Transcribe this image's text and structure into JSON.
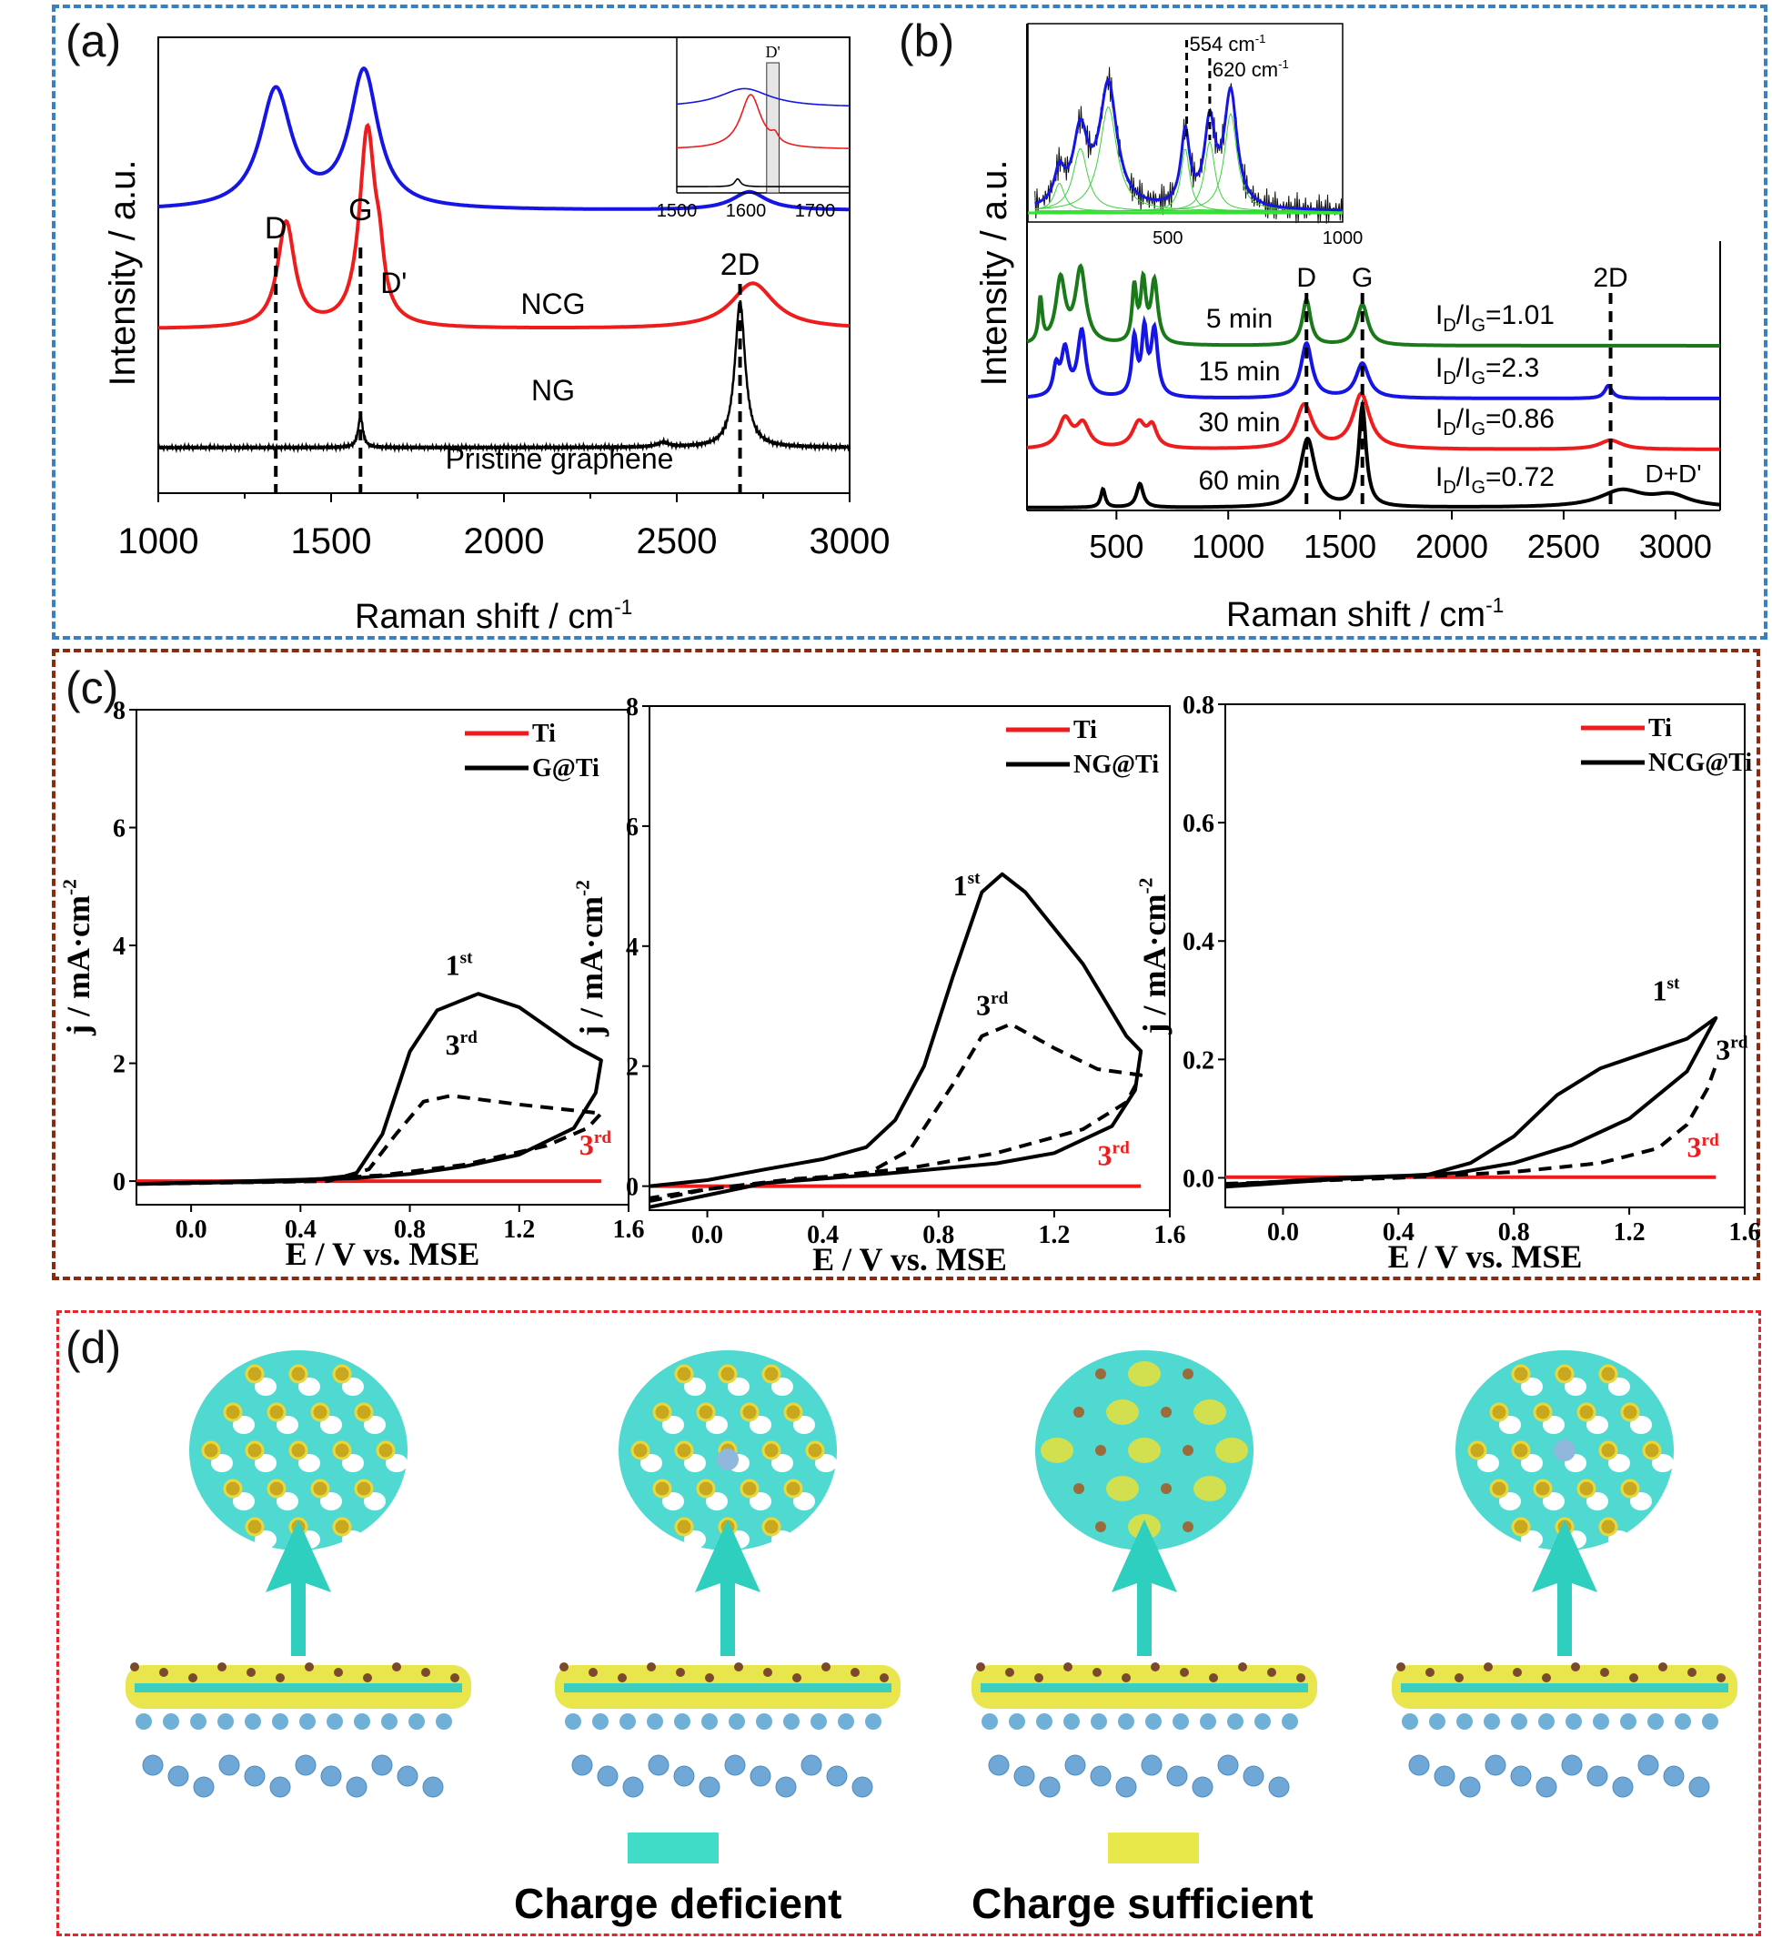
{
  "panels": {
    "a": {
      "label": "(a)"
    },
    "b": {
      "label": "(b)"
    },
    "c": {
      "label": "(c)"
    },
    "d": {
      "label": "(d)"
    }
  },
  "chart_data": [
    {
      "id": "a",
      "type": "line",
      "title": "",
      "xlabel": "Raman shift / cm-1",
      "ylabel": "Intensity / a.u.",
      "xlim": [
        1000,
        3000
      ],
      "xticks": [
        1000,
        1500,
        2000,
        2500,
        3000
      ],
      "grid": false,
      "series": [
        {
          "name": "NCG",
          "color": "#1515e6",
          "offset": 0.62,
          "peaks": [
            {
              "x": 1340,
              "h": 0.26,
              "w": 55
            },
            {
              "x": 1595,
              "h": 0.3,
              "w": 50
            },
            {
              "x": 2710,
              "h": 0.04,
              "w": 60
            }
          ]
        },
        {
          "name": "NG",
          "color": "#ee1c1c",
          "offset": 0.36,
          "peaks": [
            {
              "x": 1370,
              "h": 0.23,
              "w": 30
            },
            {
              "x": 1605,
              "h": 0.43,
              "w": 28
            },
            {
              "x": 1640,
              "h": 0.08,
              "w": 15
            },
            {
              "x": 2720,
              "h": 0.1,
              "w": 75
            }
          ]
        },
        {
          "name": "Pristine graphene",
          "color": "#000000",
          "offset": 0.1,
          "peaks": [
            {
              "x": 1585,
              "h": 0.07,
              "w": 8
            },
            {
              "x": 2683,
              "h": 0.32,
              "w": 18
            },
            {
              "x": 2460,
              "h": 0.01,
              "w": 20
            }
          ]
        }
      ],
      "annotations": [
        {
          "text": "D",
          "x": 1340
        },
        {
          "text": "G",
          "x": 1585
        },
        {
          "text": "D'",
          "x": 1660
        },
        {
          "text": "2D",
          "x": 2683
        }
      ],
      "series_labels": [
        "NCG",
        "NG",
        "Pristine graphene"
      ],
      "inset": {
        "xlim": [
          1500,
          1750
        ],
        "xticks": [
          1500,
          1600,
          1700
        ],
        "band_label": "D'",
        "band": [
          1630,
          1648
        ]
      }
    },
    {
      "id": "b",
      "type": "line",
      "title": "",
      "xlabel": "Raman shift / cm-1",
      "ylabel": "Intensity / a.u.",
      "xlim": [
        100,
        3200
      ],
      "xticks": [
        500,
        1000,
        1500,
        2000,
        2500,
        3000
      ],
      "grid": false,
      "series": [
        {
          "name": "5 min",
          "ratio": "ID/IG=1.01",
          "color": "#1a7a1a"
        },
        {
          "name": "15 min",
          "ratio": "ID/IG=2.3",
          "color": "#1515e6"
        },
        {
          "name": "30 min",
          "ratio": "ID/IG=0.86",
          "color": "#ee1c1c"
        },
        {
          "name": "60 min",
          "ratio": "ID/IG=0.72",
          "color": "#000000"
        }
      ],
      "annotations": [
        {
          "text": "D",
          "x": 1350
        },
        {
          "text": "G",
          "x": 1600
        },
        {
          "text": "2D",
          "x": 2710
        },
        {
          "text": "D+D'",
          "x": 2950
        }
      ],
      "inset": {
        "xlim": [
          100,
          1000
        ],
        "xticks": [
          500,
          1000
        ],
        "markers": [
          {
            "text": "554 cm-1",
            "x": 554
          },
          {
            "text": "620 cm-1",
            "x": 620
          }
        ]
      }
    },
    {
      "id": "c1",
      "type": "line",
      "xlabel": "E / V vs. MSE",
      "ylabel": "j / mA·cm-2",
      "xlim": [
        -0.2,
        1.6
      ],
      "ylim": [
        -0.4,
        8
      ],
      "xticks": [
        0.0,
        0.4,
        0.8,
        1.2,
        1.6
      ],
      "yticks": [
        0,
        2,
        4,
        6,
        8
      ],
      "legend": [
        "Ti",
        "G@Ti"
      ],
      "legend_position": "top-right",
      "labels": {
        "first": "1st",
        "third": "3rd",
        "ti_third": "3rd"
      },
      "series": [
        {
          "name": "Ti",
          "color": "#ee1c1c",
          "style": "solid",
          "points": [
            [
              -0.2,
              0
            ],
            [
              1.5,
              0
            ]
          ]
        },
        {
          "name": "G@Ti 1st",
          "color": "#000",
          "style": "solid",
          "points": [
            [
              -0.2,
              -0.05
            ],
            [
              0.4,
              0.0
            ],
            [
              0.6,
              0.1
            ],
            [
              0.7,
              0.8
            ],
            [
              0.8,
              2.2
            ],
            [
              0.9,
              2.9
            ],
            [
              1.05,
              3.18
            ],
            [
              1.2,
              2.95
            ],
            [
              1.4,
              2.3
            ],
            [
              1.5,
              2.05
            ],
            [
              1.48,
              1.5
            ],
            [
              1.4,
              0.9
            ],
            [
              1.2,
              0.45
            ],
            [
              1.0,
              0.25
            ],
            [
              0.8,
              0.12
            ],
            [
              0.6,
              0.05
            ],
            [
              0.2,
              0.0
            ],
            [
              -0.2,
              -0.05
            ]
          ]
        },
        {
          "name": "G@Ti 3rd",
          "color": "#000",
          "style": "dashed",
          "points": [
            [
              -0.2,
              -0.05
            ],
            [
              0.5,
              0.0
            ],
            [
              0.65,
              0.2
            ],
            [
              0.75,
              0.8
            ],
            [
              0.85,
              1.35
            ],
            [
              0.95,
              1.45
            ],
            [
              1.2,
              1.3
            ],
            [
              1.5,
              1.15
            ],
            [
              1.45,
              0.9
            ],
            [
              1.3,
              0.6
            ],
            [
              1.0,
              0.28
            ],
            [
              0.7,
              0.1
            ],
            [
              0.4,
              0.02
            ],
            [
              -0.2,
              -0.05
            ]
          ]
        }
      ]
    },
    {
      "id": "c2",
      "type": "line",
      "xlabel": "E / V vs. MSE",
      "ylabel": "j / mA·cm-2",
      "xlim": [
        -0.2,
        1.6
      ],
      "ylim": [
        -0.4,
        8
      ],
      "xticks": [
        0.0,
        0.4,
        0.8,
        1.2,
        1.6
      ],
      "yticks": [
        0,
        2,
        4,
        6,
        8
      ],
      "legend": [
        "Ti",
        "NG@Ti"
      ],
      "legend_position": "top-right",
      "labels": {
        "first": "1st",
        "third": "3rd",
        "ti_third": "3rd"
      },
      "series": [
        {
          "name": "Ti",
          "color": "#ee1c1c",
          "style": "solid",
          "points": [
            [
              -0.2,
              0
            ],
            [
              1.5,
              0
            ]
          ]
        },
        {
          "name": "NG@Ti 1st",
          "color": "#000",
          "style": "solid",
          "points": [
            [
              -0.2,
              0.0
            ],
            [
              0.0,
              0.1
            ],
            [
              0.2,
              0.28
            ],
            [
              0.4,
              0.45
            ],
            [
              0.55,
              0.65
            ],
            [
              0.65,
              1.1
            ],
            [
              0.75,
              2.0
            ],
            [
              0.85,
              3.5
            ],
            [
              0.95,
              4.9
            ],
            [
              1.02,
              5.2
            ],
            [
              1.1,
              4.9
            ],
            [
              1.3,
              3.7
            ],
            [
              1.45,
              2.5
            ],
            [
              1.5,
              2.25
            ],
            [
              1.48,
              1.6
            ],
            [
              1.4,
              1.0
            ],
            [
              1.2,
              0.55
            ],
            [
              1.0,
              0.38
            ],
            [
              0.6,
              0.2
            ],
            [
              0.2,
              0.05
            ],
            [
              0.0,
              -0.15
            ],
            [
              -0.2,
              -0.35
            ]
          ]
        },
        {
          "name": "NG@Ti 3rd",
          "color": "#000",
          "style": "dashed",
          "points": [
            [
              -0.2,
              -0.25
            ],
            [
              0.0,
              -0.05
            ],
            [
              0.3,
              0.12
            ],
            [
              0.55,
              0.2
            ],
            [
              0.7,
              0.6
            ],
            [
              0.85,
              1.7
            ],
            [
              0.95,
              2.5
            ],
            [
              1.05,
              2.7
            ],
            [
              1.2,
              2.3
            ],
            [
              1.35,
              1.95
            ],
            [
              1.5,
              1.85
            ],
            [
              1.45,
              1.4
            ],
            [
              1.3,
              0.95
            ],
            [
              1.0,
              0.55
            ],
            [
              0.7,
              0.3
            ],
            [
              0.4,
              0.15
            ],
            [
              0.0,
              -0.05
            ],
            [
              -0.2,
              -0.2
            ]
          ]
        }
      ]
    },
    {
      "id": "c3",
      "type": "line",
      "xlabel": "E / V vs. MSE",
      "ylabel": "j / mA·cm-2",
      "xlim": [
        -0.2,
        1.6
      ],
      "ylim": [
        -0.05,
        0.8
      ],
      "xticks": [
        0.0,
        0.4,
        0.8,
        1.2,
        1.6
      ],
      "yticks": [
        0.0,
        0.2,
        0.4,
        0.6,
        0.8
      ],
      "legend": [
        "Ti",
        "NCG@Ti"
      ],
      "legend_position": "top-right",
      "labels": {
        "first": "1st",
        "third": "3rd",
        "ti_third": "3rd"
      },
      "series": [
        {
          "name": "Ti",
          "color": "#ee1c1c",
          "style": "solid",
          "points": [
            [
              -0.2,
              0.001
            ],
            [
              1.5,
              0.001
            ]
          ]
        },
        {
          "name": "NCG@Ti 1st",
          "color": "#000",
          "style": "solid",
          "points": [
            [
              -0.2,
              -0.012
            ],
            [
              0.2,
              0.0
            ],
            [
              0.5,
              0.005
            ],
            [
              0.65,
              0.025
            ],
            [
              0.8,
              0.07
            ],
            [
              0.95,
              0.14
            ],
            [
              1.1,
              0.185
            ],
            [
              1.25,
              0.21
            ],
            [
              1.4,
              0.235
            ],
            [
              1.5,
              0.27
            ],
            [
              1.4,
              0.18
            ],
            [
              1.2,
              0.1
            ],
            [
              1.0,
              0.055
            ],
            [
              0.8,
              0.025
            ],
            [
              0.6,
              0.008
            ],
            [
              0.2,
              -0.002
            ],
            [
              -0.2,
              -0.015
            ]
          ]
        },
        {
          "name": "NCG@Ti 3rd",
          "color": "#000",
          "style": "dashed",
          "points": [
            [
              -0.2,
              -0.01
            ],
            [
              0.4,
              0.0
            ],
            [
              0.8,
              0.01
            ],
            [
              1.1,
              0.025
            ],
            [
              1.3,
              0.05
            ],
            [
              1.4,
              0.09
            ],
            [
              1.47,
              0.15
            ],
            [
              1.5,
              0.19
            ]
          ]
        }
      ]
    }
  ],
  "legend_d": {
    "deficient": {
      "label": "Charge deficient",
      "color": "#40dcc8"
    },
    "sufficient": {
      "label": "Charge sufficient",
      "color": "#e8e84a"
    }
  }
}
